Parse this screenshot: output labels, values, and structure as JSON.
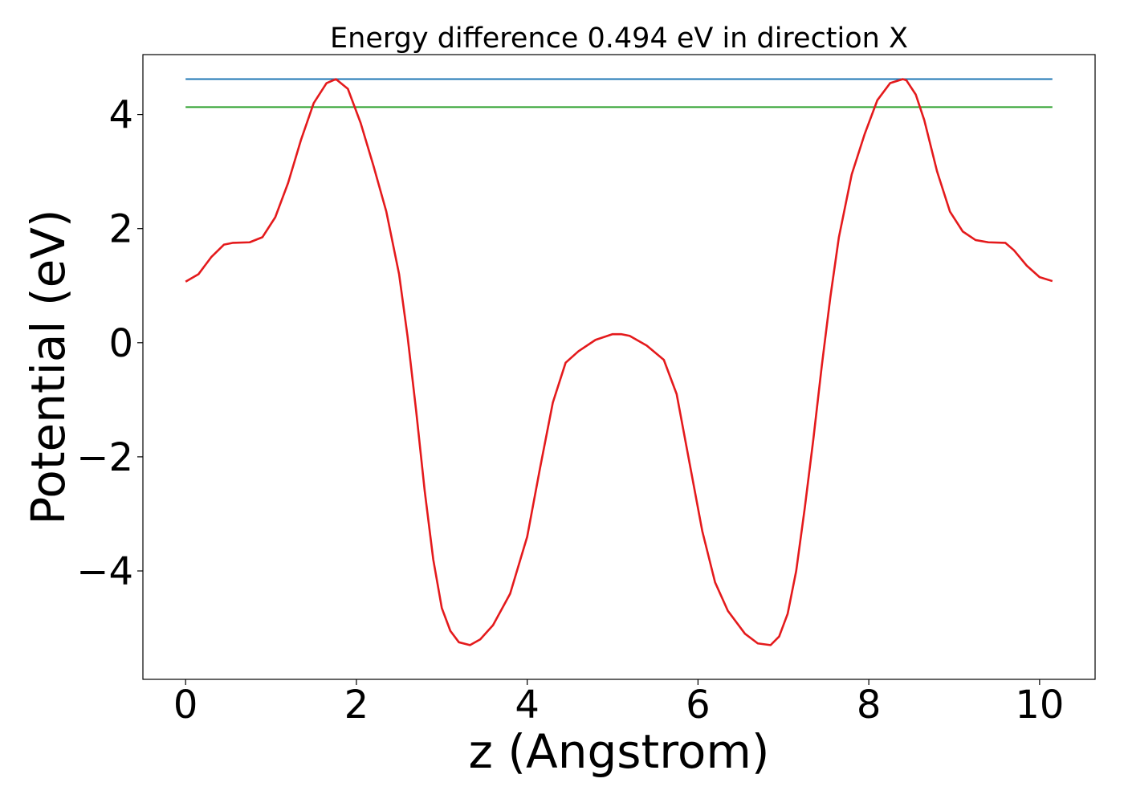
{
  "chart_data": {
    "type": "line",
    "title": "Energy difference 0.494 eV in direction X",
    "xlabel": "z (Angstrom)",
    "ylabel": "Potential (eV)",
    "xlim": [
      -0.5,
      10.65
    ],
    "ylim": [
      -5.9,
      5.05
    ],
    "xticks": [
      0,
      2,
      4,
      6,
      8,
      10
    ],
    "xtick_labels": [
      "0",
      "2",
      "4",
      "6",
      "8",
      "10"
    ],
    "yticks": [
      -4,
      -2,
      0,
      2,
      4
    ],
    "ytick_labels": [
      "−4",
      "−2",
      "0",
      "2",
      "4"
    ],
    "grid": false,
    "series": [
      {
        "color": "#1f77b4",
        "x": [
          0.0,
          10.15
        ],
        "y": [
          4.62,
          4.62
        ]
      },
      {
        "color": "#2ca02c",
        "x": [
          0.0,
          10.15
        ],
        "y": [
          4.13,
          4.13
        ]
      },
      {
        "color": "#e41a1c",
        "x": [
          0.0,
          0.15,
          0.3,
          0.45,
          0.55,
          0.75,
          0.9,
          1.05,
          1.2,
          1.35,
          1.5,
          1.65,
          1.76,
          1.9,
          2.05,
          2.2,
          2.35,
          2.5,
          2.6,
          2.7,
          2.8,
          2.9,
          3.0,
          3.1,
          3.2,
          3.33,
          3.45,
          3.6,
          3.8,
          4.0,
          4.15,
          4.3,
          4.45,
          4.6,
          4.8,
          5.0,
          5.1,
          5.2,
          5.4,
          5.6,
          5.75,
          5.9,
          6.05,
          6.2,
          6.35,
          6.55,
          6.7,
          6.85,
          6.95,
          7.05,
          7.15,
          7.25,
          7.35,
          7.45,
          7.55,
          7.65,
          7.8,
          7.95,
          8.1,
          8.25,
          8.4,
          8.44,
          8.55,
          8.65,
          8.8,
          8.95,
          9.1,
          9.25,
          9.4,
          9.6,
          9.7,
          9.85,
          10.0,
          10.15
        ],
        "y": [
          1.07,
          1.2,
          1.5,
          1.72,
          1.75,
          1.76,
          1.85,
          2.2,
          2.8,
          3.55,
          4.2,
          4.55,
          4.62,
          4.45,
          3.85,
          3.1,
          2.3,
          1.2,
          0.1,
          -1.2,
          -2.6,
          -3.8,
          -4.65,
          -5.05,
          -5.25,
          -5.3,
          -5.2,
          -4.95,
          -4.4,
          -3.4,
          -2.2,
          -1.05,
          -0.35,
          -0.15,
          0.05,
          0.15,
          0.15,
          0.12,
          -0.05,
          -0.3,
          -0.9,
          -2.1,
          -3.3,
          -4.2,
          -4.7,
          -5.1,
          -5.27,
          -5.3,
          -5.15,
          -4.75,
          -4.0,
          -2.9,
          -1.7,
          -0.4,
          0.8,
          1.85,
          2.95,
          3.65,
          4.25,
          4.55,
          4.62,
          4.6,
          4.35,
          3.9,
          3.0,
          2.3,
          1.95,
          1.8,
          1.76,
          1.75,
          1.62,
          1.35,
          1.15,
          1.08
        ]
      }
    ]
  }
}
